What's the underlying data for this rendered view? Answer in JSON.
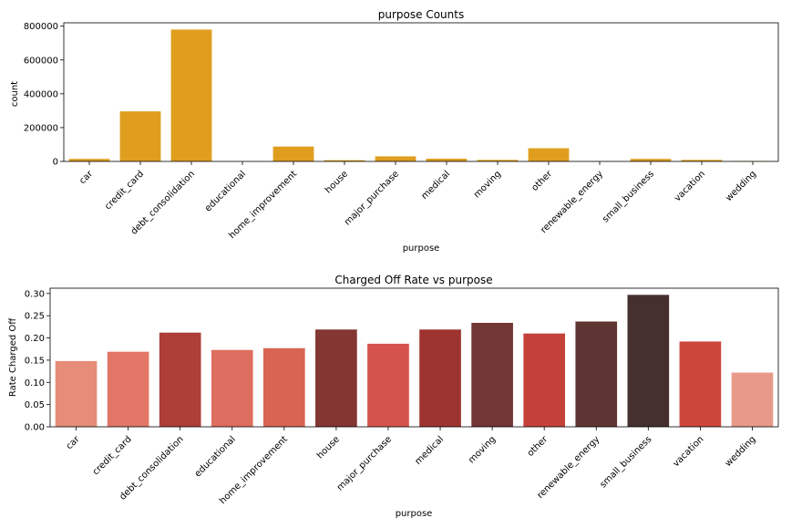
{
  "chart_data": [
    {
      "type": "bar",
      "title": "purpose Counts",
      "xlabel": "purpose",
      "ylabel": "count",
      "categories": [
        "car",
        "credit_card",
        "debt_consolidation",
        "educational",
        "home_improvement",
        "house",
        "major_purchase",
        "medical",
        "moving",
        "other",
        "renewable_energy",
        "small_business",
        "vacation",
        "wedding"
      ],
      "values": [
        15000,
        296000,
        780000,
        400,
        88000,
        7000,
        30000,
        16000,
        9000,
        78000,
        800,
        15000,
        9000,
        2300
      ],
      "ylim": [
        0,
        820000
      ],
      "yticks": [
        0,
        200000,
        400000,
        600000,
        800000
      ],
      "ytick_labels": [
        "0",
        "200000",
        "400000",
        "600000",
        "800000"
      ],
      "grid": false,
      "bar_color": "#e09e1f"
    },
    {
      "type": "bar",
      "title": "Charged Off Rate vs purpose",
      "xlabel": "purpose",
      "ylabel": "Rate Charged Off",
      "categories": [
        "car",
        "credit_card",
        "debt_consolidation",
        "educational",
        "home_improvement",
        "house",
        "major_purchase",
        "medical",
        "moving",
        "other",
        "renewable_energy",
        "small_business",
        "vacation",
        "wedding"
      ],
      "values": [
        0.148,
        0.169,
        0.212,
        0.173,
        0.177,
        0.219,
        0.187,
        0.219,
        0.234,
        0.21,
        0.237,
        0.297,
        0.192,
        0.122
      ],
      "ylim": [
        0,
        0.312
      ],
      "yticks": [
        0,
        0.05,
        0.1,
        0.15,
        0.2,
        0.25,
        0.3
      ],
      "ytick_labels": [
        "0.00",
        "0.05",
        "0.10",
        "0.15",
        "0.20",
        "0.25",
        "0.30"
      ],
      "grid": false,
      "bar_colors": [
        "#e58d78",
        "#e27768",
        "#ad3e38",
        "#de6e5f",
        "#d96454",
        "#833632",
        "#d4534a",
        "#9e3430",
        "#723634",
        "#c4413a",
        "#5e3532",
        "#46302f",
        "#cd463c",
        "#e8998a"
      ]
    }
  ]
}
